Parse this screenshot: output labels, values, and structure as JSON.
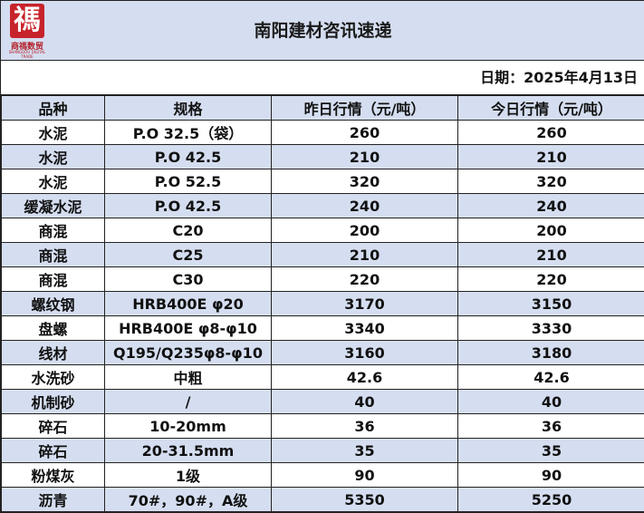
{
  "header": {
    "logo_mark": "禡",
    "logo_name": "商禡数贸",
    "logo_subtitle": "SHANGDOU DIGITAL TRADE",
    "title": "南阳建材咨讯速递"
  },
  "date_label": "日期：2025年4月13日",
  "table": {
    "columns": [
      "品种",
      "规格",
      "昨日行情（元/吨）",
      "今日行情（元/吨）"
    ],
    "rows": [
      [
        "水泥",
        "P.O 32.5（袋）",
        "260",
        "260"
      ],
      [
        "水泥",
        "P.O 42.5",
        "210",
        "210"
      ],
      [
        "水泥",
        "P.O 52.5",
        "320",
        "320"
      ],
      [
        "缓凝水泥",
        "P.O 42.5",
        "240",
        "240"
      ],
      [
        "商混",
        "C20",
        "200",
        "200"
      ],
      [
        "商混",
        "C25",
        "210",
        "210"
      ],
      [
        "商混",
        "C30",
        "220",
        "220"
      ],
      [
        "螺纹钢",
        "HRB400E φ20",
        "3170",
        "3150"
      ],
      [
        "盘螺",
        "HRB400E φ8-φ10",
        "3340",
        "3330"
      ],
      [
        "线材",
        "Q195/Q235φ8-φ10",
        "3160",
        "3180"
      ],
      [
        "水洗砂",
        "中粗",
        "42.6",
        "42.6"
      ],
      [
        "机制砂",
        "/",
        "40",
        "40"
      ],
      [
        "碎石",
        "10-20mm",
        "36",
        "36"
      ],
      [
        "碎石",
        "20-31.5mm",
        "35",
        "35"
      ],
      [
        "粉煤灰",
        "1级",
        "90",
        "90"
      ],
      [
        "沥青",
        "70#，90#，A级",
        "5350",
        "5250"
      ]
    ]
  },
  "colors": {
    "header_bg": "#d5def0",
    "logo_red": "#c7232b",
    "border": "#222222"
  }
}
